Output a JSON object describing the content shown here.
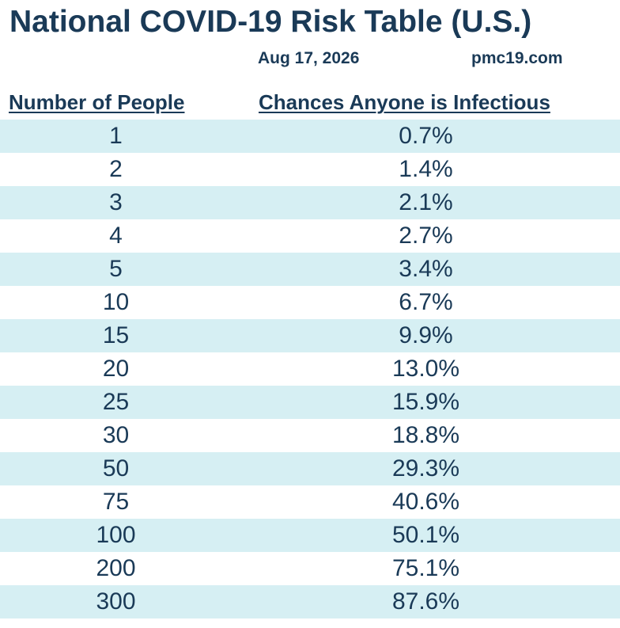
{
  "header": {
    "title": "National COVID-19 Risk Table (U.S.)",
    "date": "Aug 17, 2026",
    "site": "pmc19.com"
  },
  "chart_data": {
    "type": "table",
    "columns": [
      "Number of People",
      "Chances Anyone is Infectious"
    ],
    "rows": [
      {
        "people": "1",
        "chance": "0.7%"
      },
      {
        "people": "2",
        "chance": "1.4%"
      },
      {
        "people": "3",
        "chance": "2.1%"
      },
      {
        "people": "4",
        "chance": "2.7%"
      },
      {
        "people": "5",
        "chance": "3.4%"
      },
      {
        "people": "10",
        "chance": "6.7%"
      },
      {
        "people": "15",
        "chance": "9.9%"
      },
      {
        "people": "20",
        "chance": "13.0%"
      },
      {
        "people": "25",
        "chance": "15.9%"
      },
      {
        "people": "30",
        "chance": "18.8%"
      },
      {
        "people": "50",
        "chance": "29.3%"
      },
      {
        "people": "75",
        "chance": "40.6%"
      },
      {
        "people": "100",
        "chance": "50.1%"
      },
      {
        "people": "200",
        "chance": "75.1%"
      },
      {
        "people": "300",
        "chance": "87.6%"
      }
    ]
  },
  "colors": {
    "text": "#1a3a57",
    "row_shade": "#d6eff3"
  }
}
